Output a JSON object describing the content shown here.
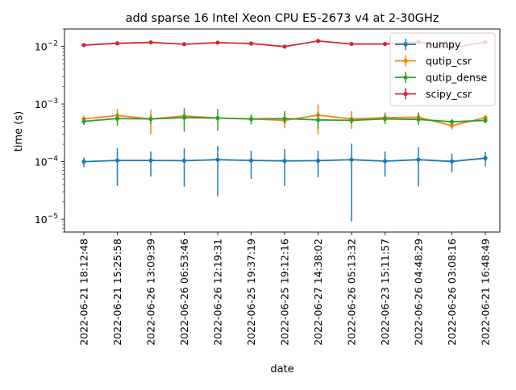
{
  "chart_data": {
    "type": "line",
    "title": "add sparse 16 Intel Xeon CPU E5-2673 v4 at 2-30GHz",
    "xlabel": "date",
    "ylabel": "time (s)",
    "y_scale": "log",
    "ylim": [
      6e-06,
      0.02
    ],
    "y_ticks": [
      {
        "value": 1e-05,
        "base": "10",
        "exp": "−5"
      },
      {
        "value": 0.0001,
        "base": "10",
        "exp": "−4"
      },
      {
        "value": 0.001,
        "base": "10",
        "exp": "−3"
      },
      {
        "value": 0.01,
        "base": "10",
        "exp": "−2"
      }
    ],
    "grid": false,
    "legend_position": "top-right",
    "categories": [
      "2022-06-21 18:12:48",
      "2022-06-21 15:25:58",
      "2022-06-26 13:09:39",
      "2022-06-26 06:53:46",
      "2022-06-26 12:19:31",
      "2022-06-25 19:37:19",
      "2022-06-25 19:12:16",
      "2022-06-27 14:38:02",
      "2022-06-26 05:13:32",
      "2022-06-23 15:11:57",
      "2022-06-26 04:48:29",
      "2022-06-26 03:08:16",
      "2022-06-21 16:48:49"
    ],
    "series": [
      {
        "name": "numpy",
        "color": "#1f77b4",
        "values": [
          0.0001,
          0.000105,
          0.000105,
          0.000104,
          0.000108,
          0.000105,
          0.000103,
          0.000104,
          0.000108,
          0.000102,
          0.000108,
          0.000101,
          0.000115
        ],
        "err_low": [
          8e-05,
          3.8e-05,
          5.5e-05,
          3.7e-05,
          2.5e-05,
          5e-05,
          3.8e-05,
          5.3e-05,
          9.2e-06,
          5.5e-05,
          3.7e-05,
          6.5e-05,
          8.3e-05
        ],
        "err_high": [
          0.000118,
          0.00017,
          0.00015,
          0.00017,
          0.000188,
          0.000155,
          0.000165,
          0.000155,
          0.000205,
          0.00015,
          0.000178,
          0.000138,
          0.000148
        ]
      },
      {
        "name": "qutip_csr",
        "color": "#ff7f0e",
        "values": [
          0.00055,
          0.00063,
          0.00055,
          0.00062,
          0.00057,
          0.00055,
          0.00052,
          0.00064,
          0.00055,
          0.00058,
          0.00059,
          0.00042,
          0.00058
        ],
        "err_low": [
          0.00048,
          0.00048,
          0.0003,
          0.00052,
          0.00048,
          0.00048,
          0.00038,
          0.0003,
          0.00037,
          0.00047,
          0.0005,
          0.00036,
          0.00052
        ],
        "err_high": [
          0.00063,
          0.00083,
          0.0008,
          0.00072,
          0.00065,
          0.00062,
          0.00068,
          0.00098,
          0.00075,
          0.00072,
          0.00072,
          0.0005,
          0.00065
        ]
      },
      {
        "name": "qutip_dense",
        "color": "#2ca02c",
        "values": [
          0.0005,
          0.00056,
          0.00055,
          0.00058,
          0.00057,
          0.00055,
          0.00056,
          0.00053,
          0.00052,
          0.00055,
          0.00054,
          0.00049,
          0.00052
        ],
        "err_low": [
          0.00043,
          0.00042,
          0.00045,
          0.00033,
          0.00034,
          0.00044,
          0.00045,
          0.00037,
          0.00045,
          0.00045,
          0.00043,
          0.00043,
          0.00046
        ],
        "err_high": [
          0.00058,
          0.0007,
          0.00065,
          0.00085,
          0.00082,
          0.00066,
          0.00075,
          0.00073,
          0.00058,
          0.00068,
          0.0007,
          0.00055,
          0.00059
        ]
      },
      {
        "name": "scipy_csr",
        "color": "#d62728",
        "values": [
          0.0105,
          0.0113,
          0.0117,
          0.0109,
          0.0116,
          0.0112,
          0.0099,
          0.0124,
          0.011,
          0.011,
          0.0119,
          0.0095,
          0.0118
        ],
        "err_low": [
          0.0102,
          0.011,
          0.0114,
          0.0106,
          0.0113,
          0.0109,
          0.0096,
          0.012,
          0.0107,
          0.0107,
          0.0114,
          0.0092,
          0.0114
        ],
        "err_high": [
          0.0108,
          0.0116,
          0.012,
          0.0112,
          0.0119,
          0.0115,
          0.0102,
          0.0128,
          0.0113,
          0.0113,
          0.0124,
          0.0098,
          0.0122
        ]
      }
    ]
  }
}
